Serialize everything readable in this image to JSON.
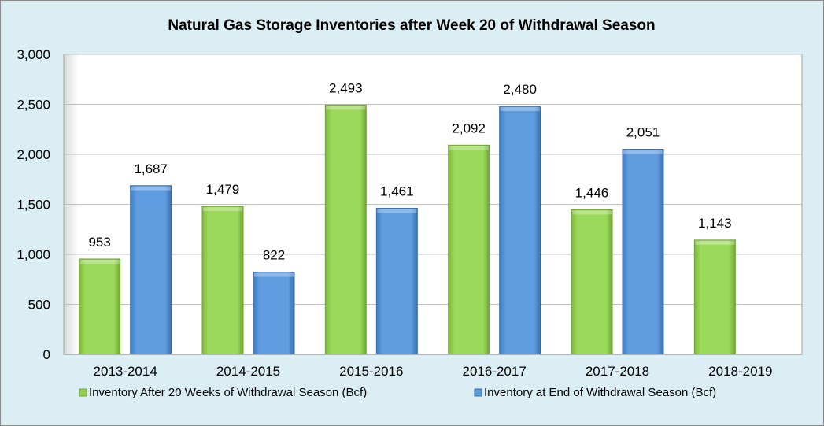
{
  "chart_data": {
    "type": "bar",
    "title": "Natural Gas Storage Inventories after Week 20 of Withdrawal Season",
    "categories": [
      "2013-2014",
      "2014-2015",
      "2015-2016",
      "2016-2017",
      "2017-2018",
      "2018-2019"
    ],
    "series": [
      {
        "name": "Inventory After 20 Weeks of Withdrawal Season (Bcf)",
        "color": "#92d050",
        "values": [
          953,
          1479,
          2493,
          2092,
          1446,
          1143
        ],
        "labels": [
          "953",
          "1,479",
          "2,493",
          "2,092",
          "1,446",
          "1,143"
        ]
      },
      {
        "name": "Inventory at End of Withdrawal Season (Bcf)",
        "color": "#5b9bd5",
        "values": [
          1687,
          822,
          1461,
          2480,
          2051,
          null
        ],
        "labels": [
          "1,687",
          "822",
          "1,461",
          "2,480",
          "2,051",
          ""
        ]
      }
    ],
    "ylim": [
      0,
      3000
    ],
    "yticks": [
      "0",
      "500",
      "1,000",
      "1,500",
      "2,000",
      "2,500",
      "3,000"
    ],
    "grid": true,
    "legend": "bottom"
  }
}
